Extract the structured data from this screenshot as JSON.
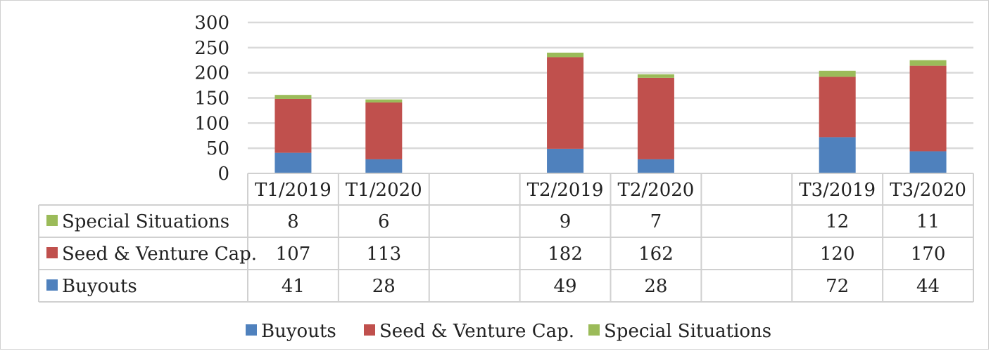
{
  "chart_data": {
    "type": "bar",
    "stacked": true,
    "title": "",
    "xlabel": "",
    "ylabel": "",
    "ylim": [
      0,
      300
    ],
    "yticks": [
      0,
      50,
      100,
      150,
      200,
      250,
      300
    ],
    "grid": true,
    "legend_placement": "bottom",
    "data_table": true,
    "categories": [
      "T1/2019",
      "T1/2020",
      "",
      "T2/2019",
      "T2/2020",
      "",
      "T3/2019",
      "T3/2020"
    ],
    "series": [
      {
        "name": "Buyouts",
        "color": "#4f81bd",
        "values": [
          41,
          28,
          null,
          49,
          28,
          null,
          72,
          44
        ]
      },
      {
        "name": "Seed & Venture Cap.",
        "color": "#c0504d",
        "values": [
          107,
          113,
          null,
          182,
          162,
          null,
          120,
          170
        ]
      },
      {
        "name": "Special Situations",
        "color": "#9bbb59",
        "values": [
          8,
          6,
          null,
          9,
          7,
          null,
          12,
          11
        ]
      }
    ]
  }
}
